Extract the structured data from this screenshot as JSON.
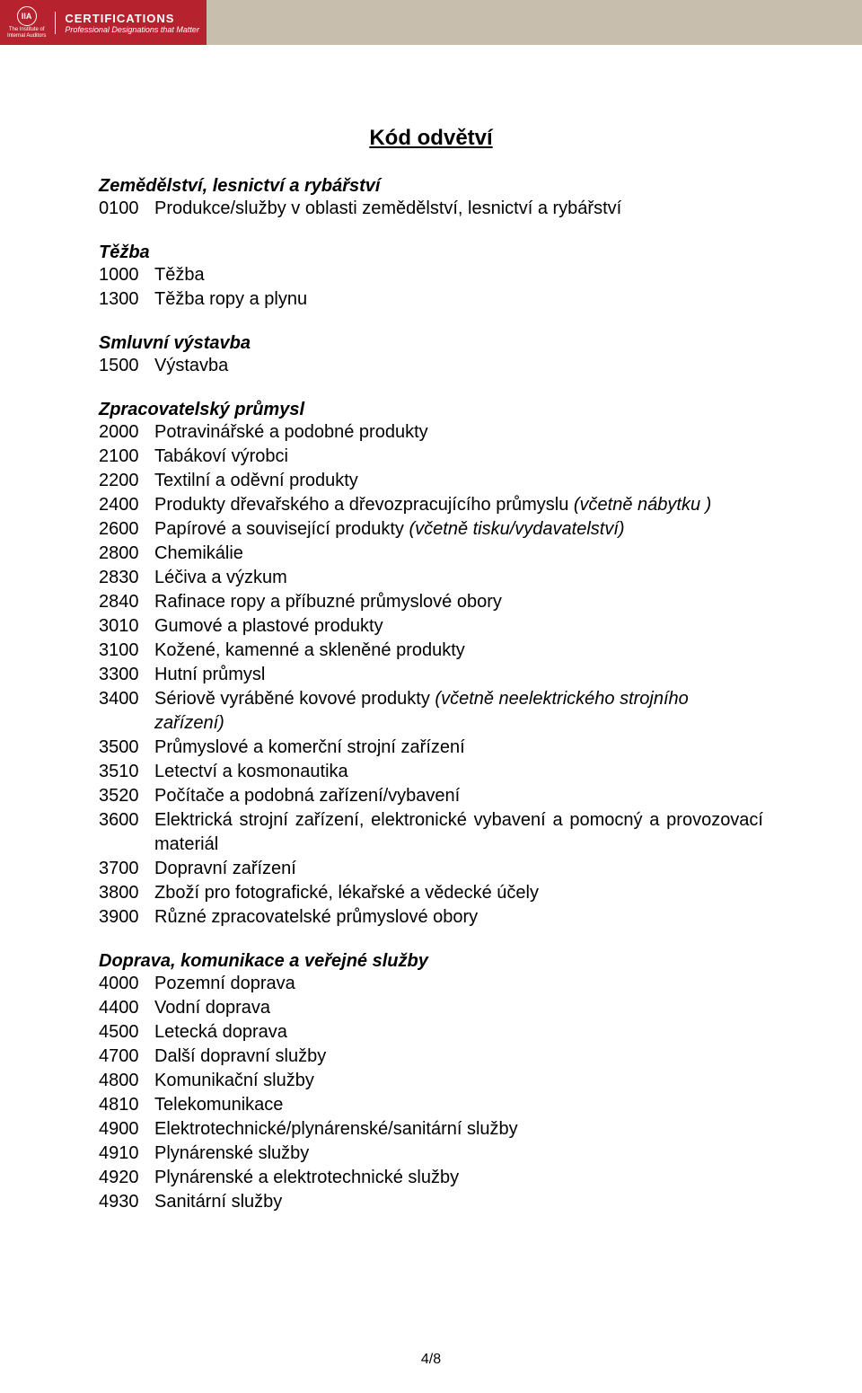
{
  "header": {
    "logo_text": "IIA",
    "logo_sub1": "The Institute of",
    "logo_sub2": "Internal Auditors",
    "cert_title": "CERTIFICATIONS",
    "cert_sub": "Professional Designations that Matter"
  },
  "title": "Kód odvětví",
  "sections": [
    {
      "heading": "Zemědělství, lesnictví a rybářství",
      "items": [
        {
          "code": "0100",
          "desc": "Produkce/služby v oblasti zemědělství, lesnictví a rybářství"
        }
      ]
    },
    {
      "heading": "Těžba",
      "items": [
        {
          "code": "1000",
          "desc": "Těžba"
        },
        {
          "code": "1300",
          "desc": "Těžba ropy a plynu"
        }
      ]
    },
    {
      "heading": "Smluvní výstavba",
      "items": [
        {
          "code": "1500",
          "desc": "Výstavba"
        }
      ]
    },
    {
      "heading": "Zpracovatelský průmysl",
      "items": [
        {
          "code": "2000",
          "desc": "Potravinářské a podobné produkty"
        },
        {
          "code": "2100",
          "desc": "Tabákoví výrobci"
        },
        {
          "code": "2200",
          "desc": "Textilní a oděvní produkty"
        },
        {
          "code": "2400",
          "desc": "Produkty dřevařského a dřevozpracujícího průmyslu ",
          "note": "(včetně nábytku )"
        },
        {
          "code": "2600",
          "desc": "Papírové a související produkty ",
          "note": "(včetně tisku/vydavatelství)"
        },
        {
          "code": "2800",
          "desc": "Chemikálie"
        },
        {
          "code": "2830",
          "desc": "Léčiva a výzkum"
        },
        {
          "code": "2840",
          "desc": "Rafinace ropy a příbuzné průmyslové obory"
        },
        {
          "code": "3010",
          "desc": "Gumové a plastové produkty"
        },
        {
          "code": "3100",
          "desc": "Kožené, kamenné a skleněné produkty"
        },
        {
          "code": "3300",
          "desc": "Hutní průmysl"
        },
        {
          "code": "3400",
          "desc": "Sériově vyráběné kovové produkty ",
          "note": "(včetně neelektrického strojního zařízení)"
        },
        {
          "code": "3500",
          "desc": "Průmyslové a komerční strojní zařízení"
        },
        {
          "code": "3510",
          "desc": "Letectví a kosmonautika"
        },
        {
          "code": "3520",
          "desc": "Počítače a podobná zařízení/vybavení"
        },
        {
          "code": "3600",
          "desc": "Elektrická strojní zařízení, elektronické vybavení a pomocný a provozovací materiál",
          "justify": true
        },
        {
          "code": "3700",
          "desc": "Dopravní zařízení"
        },
        {
          "code": "3800",
          "desc": "Zboží pro fotografické, lékařské a vědecké účely"
        },
        {
          "code": "3900",
          "desc": "Různé zpracovatelské průmyslové obory"
        }
      ]
    },
    {
      "heading": "Doprava, komunikace a veřejné služby",
      "items": [
        {
          "code": "4000",
          "desc": "Pozemní doprava"
        },
        {
          "code": "4400",
          "desc": "Vodní doprava"
        },
        {
          "code": "4500",
          "desc": "Letecká doprava"
        },
        {
          "code": "4700",
          "desc": "Další dopravní služby"
        },
        {
          "code": "4800",
          "desc": "Komunikační služby"
        },
        {
          "code": "4810",
          "desc": "Telekomunikace"
        },
        {
          "code": "4900",
          "desc": "Elektrotechnické/plynárenské/sanitární služby"
        },
        {
          "code": "4910",
          "desc": "Plynárenské služby"
        },
        {
          "code": "4920",
          "desc": "Plynárenské a elektrotechnické služby"
        },
        {
          "code": "4930",
          "desc": "Sanitární služby"
        }
      ]
    }
  ],
  "page_num": "4/8",
  "colors": {
    "banner_red": "#b6222e",
    "banner_tan": "#c8beae",
    "text": "#000000",
    "bg": "#ffffff"
  }
}
